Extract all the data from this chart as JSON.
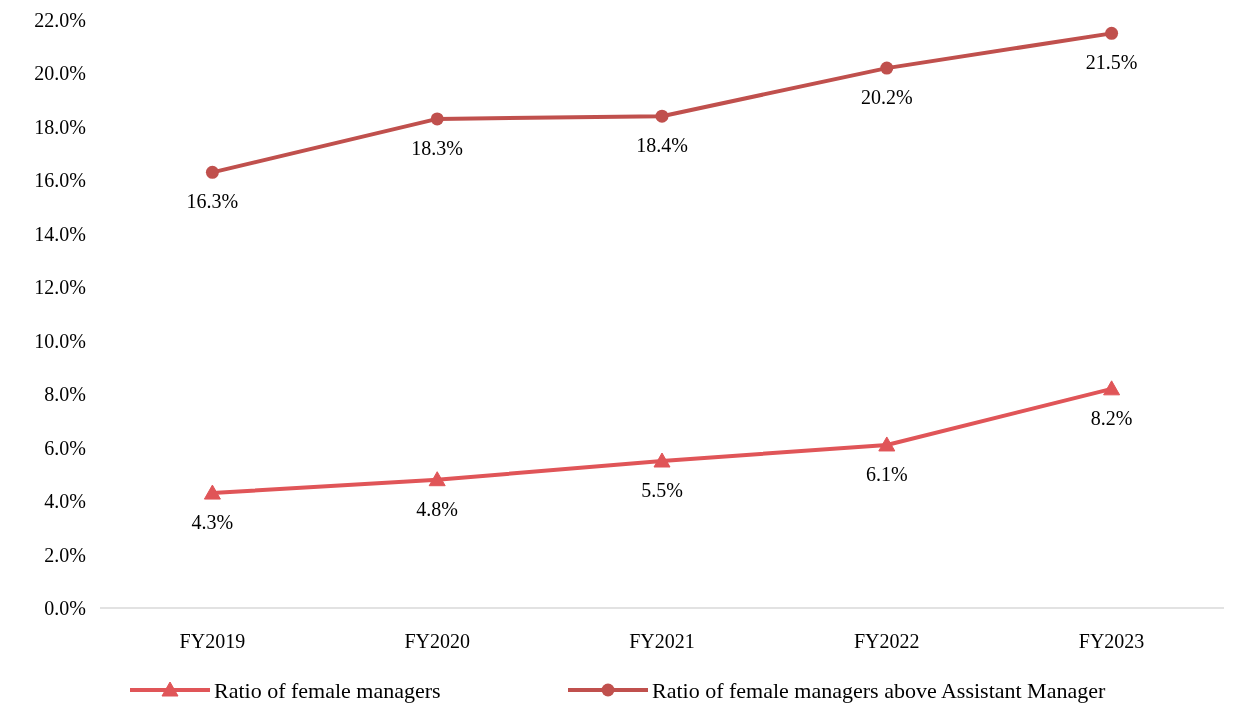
{
  "chart_data": {
    "type": "line",
    "categories": [
      "FY2019",
      "FY2020",
      "FY2021",
      "FY2022",
      "FY2023"
    ],
    "ylim": [
      0,
      22
    ],
    "yticks": [
      {
        "value": 0,
        "label": "0.0%"
      },
      {
        "value": 2,
        "label": "2.0%"
      },
      {
        "value": 4,
        "label": "4.0%"
      },
      {
        "value": 6,
        "label": "6.0%"
      },
      {
        "value": 8,
        "label": "8.0%"
      },
      {
        "value": 10,
        "label": "10.0%"
      },
      {
        "value": 12,
        "label": "12.0%"
      },
      {
        "value": 14,
        "label": "14.0%"
      },
      {
        "value": 16,
        "label": "16.0%"
      },
      {
        "value": 18,
        "label": "18.0%"
      },
      {
        "value": 20,
        "label": "20.0%"
      },
      {
        "value": 22,
        "label": "22.0%"
      }
    ],
    "series": [
      {
        "name": "Ratio of female managers",
        "color": "#e05558",
        "marker": "triangle",
        "values": [
          4.3,
          4.8,
          5.5,
          6.1,
          8.2
        ],
        "value_labels": [
          "4.3%",
          "4.8%",
          "5.5%",
          "6.1%",
          "8.2%"
        ]
      },
      {
        "name": "Ratio of female managers above Assistant Manager",
        "color": "#c0504d",
        "marker": "circle",
        "values": [
          16.3,
          18.3,
          18.4,
          20.2,
          21.5
        ],
        "value_labels": [
          "16.3%",
          "18.3%",
          "18.4%",
          "20.2%",
          "21.5%"
        ]
      }
    ],
    "grid": false,
    "legend": "bottom"
  }
}
